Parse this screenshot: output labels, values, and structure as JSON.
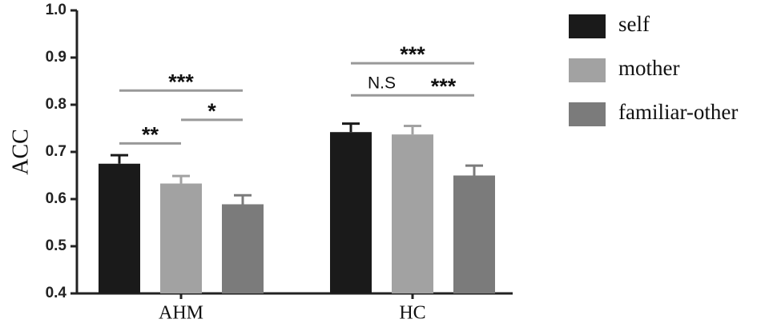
{
  "chart_data": {
    "type": "bar",
    "ylabel": "ACC",
    "xlabel": "",
    "ylim": [
      0.4,
      1.0
    ],
    "yticks": [
      "0.4",
      "0.5",
      "0.6",
      "0.7",
      "0.8",
      "0.9",
      "1.0"
    ],
    "categories": [
      "AHM",
      "HC"
    ],
    "series": [
      {
        "name": "self",
        "color": "#1a1a1a",
        "values": [
          0.675,
          0.742
        ],
        "errors": [
          0.018,
          0.018
        ]
      },
      {
        "name": "mother",
        "color": "#a2a2a2",
        "values": [
          0.633,
          0.737
        ],
        "errors": [
          0.016,
          0.018
        ]
      },
      {
        "name": "familiar-other",
        "color": "#7b7b7b",
        "values": [
          0.589,
          0.65
        ],
        "errors": [
          0.019,
          0.021
        ]
      }
    ],
    "legend_position": "right",
    "grid": false,
    "significance": [
      {
        "category": "AHM",
        "from": 0,
        "to": 2,
        "label": "***",
        "y": 0.83
      },
      {
        "category": "AHM",
        "from": 0,
        "to": 1,
        "label": "**",
        "y": 0.718
      },
      {
        "category": "AHM",
        "from": 1,
        "to": 2,
        "label": "*",
        "y": 0.768
      },
      {
        "category": "HC",
        "from": 0,
        "to": 2,
        "label": "***",
        "y": 0.888
      },
      {
        "category": "HC",
        "from": 0,
        "to": 1,
        "label": "N.S",
        "y": 0.82
      },
      {
        "category": "HC",
        "from": 1,
        "to": 2,
        "label": "***",
        "y": 0.82
      }
    ]
  }
}
